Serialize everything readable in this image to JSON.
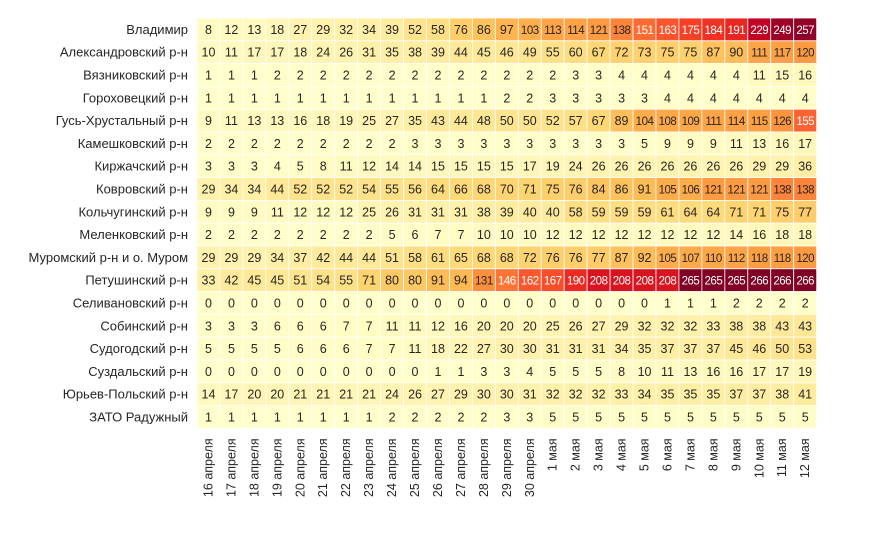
{
  "chart_data": {
    "type": "heatmap",
    "title": "",
    "xlabel": "",
    "ylabel": "",
    "colorscale": [
      "#ffffcc",
      "#fff0a8",
      "#fed976",
      "#feb24c",
      "#fd8d3c",
      "#fc4e2a",
      "#e31a1c",
      "#bd0026",
      "#800026"
    ],
    "value_range": [
      0,
      266
    ],
    "x_categories": [
      "16 апреля",
      "17 апреля",
      "18 апреля",
      "19 апреля",
      "20 апреля",
      "21 апреля",
      "22 апреля",
      "23 апреля",
      "24 апреля",
      "25 апреля",
      "26 апреля",
      "27 апреля",
      "28 апреля",
      "29 апреля",
      "30 апреля",
      "1 мая",
      "2 мая",
      "3 мая",
      "4 мая",
      "5 мая",
      "6 мая",
      "7 мая",
      "8 мая",
      "9 мая",
      "10 мая",
      "11 мая",
      "12 мая"
    ],
    "y_categories": [
      "Владимир",
      "Александровский р-н",
      "Вязниковский р-н",
      "Гороховецкий р-н",
      "Гусь-Хрустальный р-н",
      "Камешковский р-н",
      "Киржачский р-н",
      "Ковровский р-н",
      "Кольчугинский р-н",
      "Меленковский р-н",
      "Муромский р-н и о. Муром",
      "Петушинский р-н",
      "Селивановский р-н",
      "Собинский р-н",
      "Судогодский р-н",
      "Суздальский р-н",
      "Юрьев-Польский р-н",
      "ЗАТО Радужный"
    ],
    "values": [
      [
        8,
        12,
        13,
        18,
        27,
        29,
        32,
        34,
        39,
        52,
        58,
        76,
        86,
        97,
        103,
        113,
        114,
        121,
        138,
        151,
        163,
        175,
        184,
        191,
        229,
        249,
        257
      ],
      [
        10,
        11,
        17,
        17,
        18,
        24,
        26,
        31,
        35,
        38,
        39,
        44,
        45,
        46,
        49,
        55,
        60,
        67,
        72,
        73,
        75,
        75,
        87,
        90,
        111,
        117,
        120
      ],
      [
        1,
        1,
        1,
        2,
        2,
        2,
        2,
        2,
        2,
        2,
        2,
        2,
        2,
        2,
        2,
        2,
        3,
        3,
        4,
        4,
        4,
        4,
        4,
        4,
        11,
        15,
        16
      ],
      [
        1,
        1,
        1,
        1,
        1,
        1,
        1,
        1,
        1,
        1,
        1,
        1,
        1,
        2,
        2,
        3,
        3,
        3,
        3,
        3,
        4,
        4,
        4,
        4,
        4,
        4,
        4
      ],
      [
        9,
        11,
        13,
        13,
        16,
        18,
        19,
        25,
        27,
        35,
        43,
        44,
        48,
        50,
        50,
        52,
        57,
        67,
        89,
        104,
        108,
        109,
        111,
        114,
        115,
        126,
        155
      ],
      [
        2,
        2,
        2,
        2,
        2,
        2,
        2,
        2,
        2,
        3,
        3,
        3,
        3,
        3,
        3,
        3,
        3,
        3,
        3,
        5,
        9,
        9,
        9,
        11,
        13,
        16,
        17
      ],
      [
        3,
        3,
        3,
        4,
        5,
        8,
        11,
        12,
        14,
        14,
        15,
        15,
        15,
        15,
        17,
        19,
        24,
        26,
        26,
        26,
        26,
        26,
        26,
        26,
        29,
        29,
        36
      ],
      [
        29,
        34,
        34,
        44,
        52,
        52,
        52,
        54,
        55,
        56,
        64,
        66,
        68,
        70,
        71,
        75,
        76,
        84,
        86,
        91,
        105,
        106,
        121,
        121,
        121,
        138,
        138
      ],
      [
        9,
        9,
        9,
        11,
        12,
        12,
        12,
        25,
        26,
        31,
        31,
        31,
        38,
        39,
        40,
        40,
        58,
        59,
        59,
        59,
        61,
        64,
        64,
        71,
        71,
        75,
        77
      ],
      [
        2,
        2,
        2,
        2,
        2,
        2,
        2,
        2,
        5,
        6,
        7,
        7,
        10,
        10,
        10,
        12,
        12,
        12,
        12,
        12,
        12,
        12,
        12,
        14,
        16,
        18,
        18
      ],
      [
        29,
        29,
        29,
        34,
        37,
        42,
        44,
        44,
        51,
        58,
        61,
        65,
        68,
        68,
        72,
        76,
        76,
        77,
        87,
        92,
        105,
        107,
        110,
        112,
        118,
        118,
        120
      ],
      [
        33,
        42,
        45,
        45,
        51,
        54,
        55,
        71,
        80,
        80,
        91,
        94,
        131,
        146,
        162,
        167,
        190,
        208,
        208,
        208,
        208,
        265,
        265,
        265,
        266,
        266,
        266
      ],
      [
        0,
        0,
        0,
        0,
        0,
        0,
        0,
        0,
        0,
        0,
        0,
        0,
        0,
        0,
        0,
        0,
        0,
        0,
        0,
        0,
        1,
        1,
        1,
        2,
        2,
        2,
        2
      ],
      [
        3,
        3,
        3,
        6,
        6,
        6,
        7,
        7,
        11,
        11,
        12,
        16,
        20,
        20,
        20,
        25,
        26,
        27,
        29,
        32,
        32,
        32,
        33,
        38,
        38,
        43,
        43
      ],
      [
        5,
        5,
        5,
        5,
        6,
        6,
        6,
        7,
        7,
        11,
        18,
        22,
        27,
        30,
        30,
        31,
        31,
        31,
        34,
        35,
        37,
        37,
        37,
        45,
        46,
        50,
        53
      ],
      [
        0,
        0,
        0,
        0,
        0,
        0,
        0,
        0,
        0,
        0,
        1,
        1,
        3,
        3,
        4,
        5,
        5,
        5,
        8,
        10,
        11,
        13,
        16,
        16,
        17,
        17,
        19
      ],
      [
        14,
        17,
        20,
        20,
        21,
        21,
        21,
        21,
        24,
        26,
        27,
        29,
        30,
        30,
        31,
        32,
        32,
        32,
        33,
        34,
        35,
        35,
        35,
        37,
        37,
        38,
        41
      ],
      [
        1,
        1,
        1,
        1,
        1,
        1,
        1,
        1,
        2,
        2,
        2,
        2,
        2,
        3,
        3,
        5,
        5,
        5,
        5,
        5,
        5,
        5,
        5,
        5,
        5,
        5,
        5
      ]
    ]
  }
}
